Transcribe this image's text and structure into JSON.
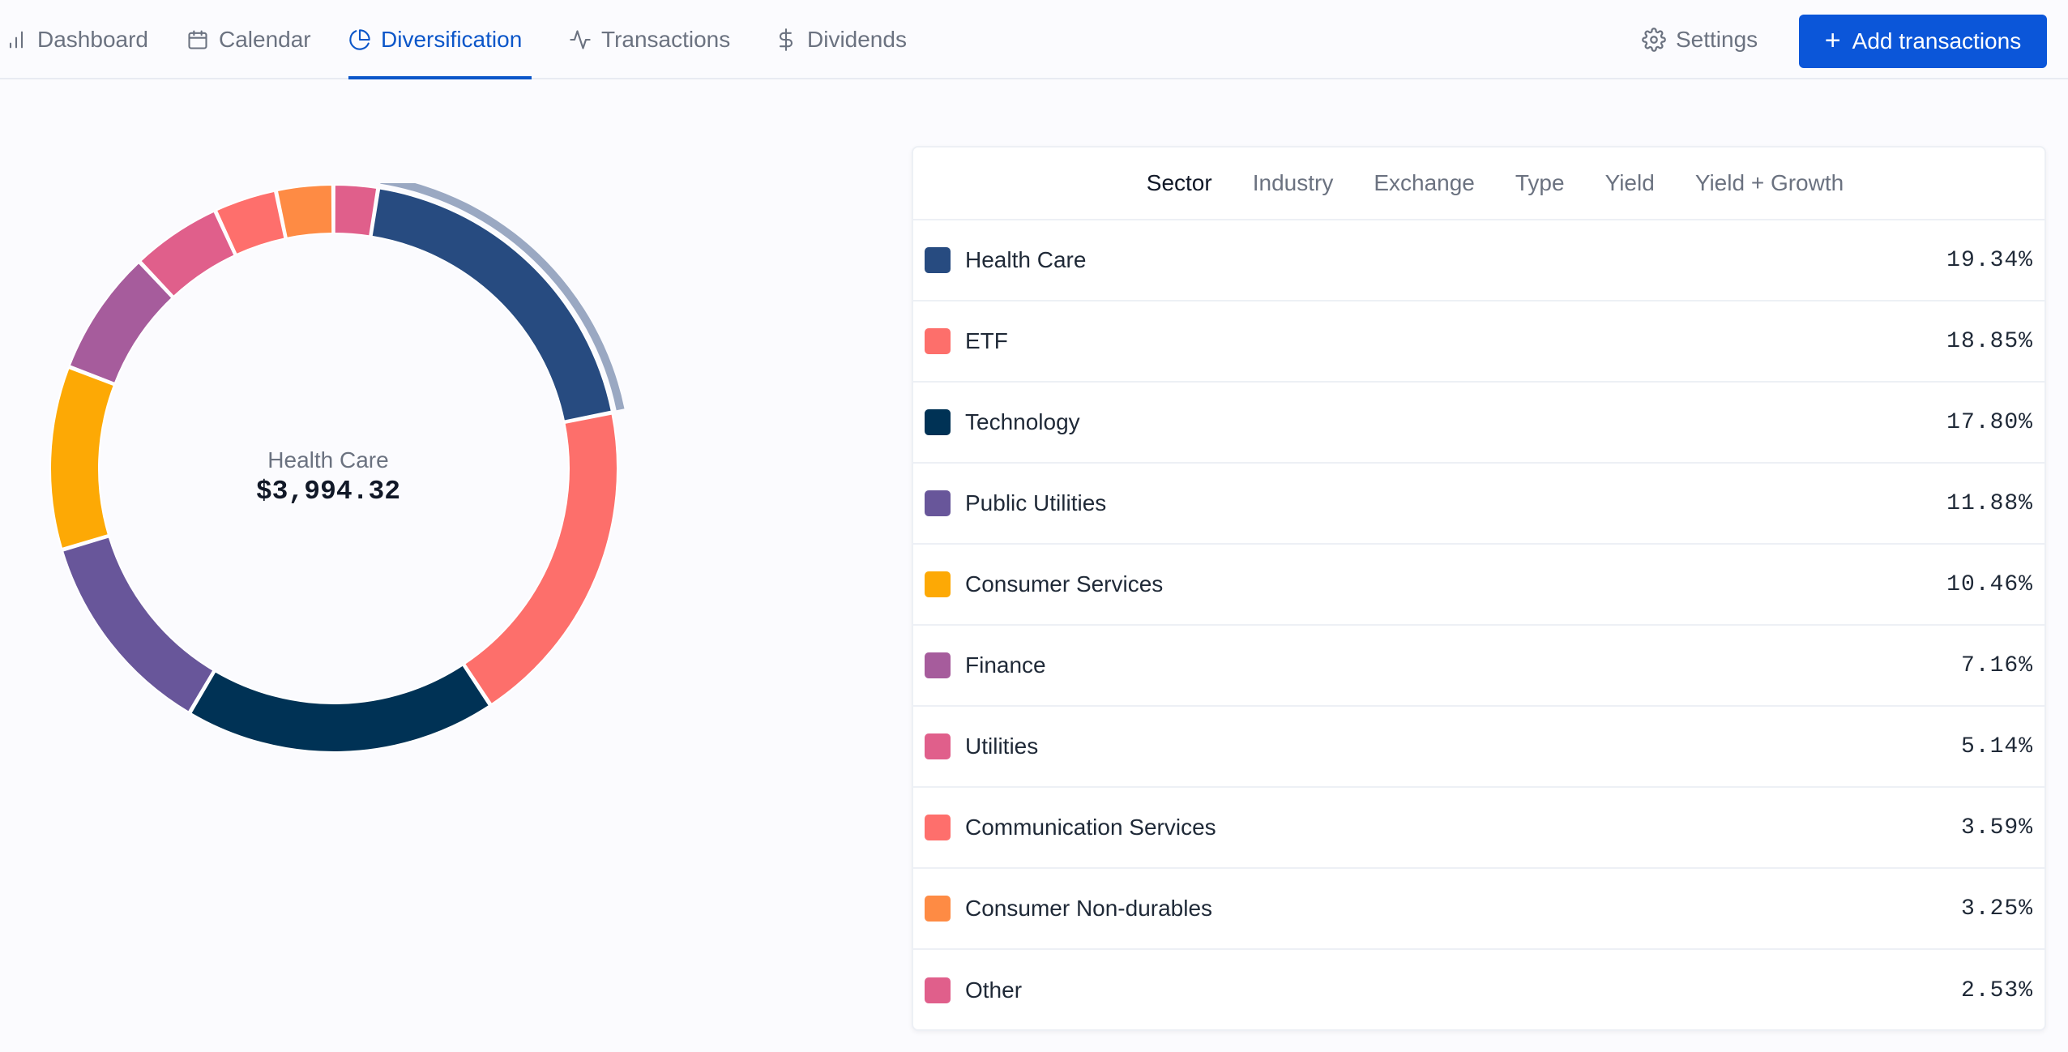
{
  "nav": {
    "tabs": [
      {
        "label": "Dashboard",
        "icon": "bar-chart-icon",
        "active": false
      },
      {
        "label": "Calendar",
        "icon": "calendar-icon",
        "active": false
      },
      {
        "label": "Diversification",
        "icon": "pie-chart-icon",
        "active": true
      },
      {
        "label": "Transactions",
        "icon": "activity-icon",
        "active": false
      },
      {
        "label": "Dividends",
        "icon": "dollar-icon",
        "active": false
      }
    ],
    "settings_label": "Settings",
    "add_button_label": "Add transactions"
  },
  "colors": {
    "accent": "#0b56c9",
    "highlight_ring": "#9aa8c2"
  },
  "donut": {
    "center_label": "Health Care",
    "center_value": "$3,994.32",
    "highlighted": "Health Care"
  },
  "breakdown": {
    "tabs": [
      "Sector",
      "Industry",
      "Exchange",
      "Type",
      "Yield",
      "Yield + Growth"
    ],
    "active_tab": "Sector"
  },
  "chart_data": {
    "type": "pie",
    "categories": [
      "Health Care",
      "ETF",
      "Technology",
      "Public Utilities",
      "Consumer Services",
      "Finance",
      "Utilities",
      "Communication Services",
      "Consumer Non-durables",
      "Other"
    ],
    "values": [
      19.34,
      18.85,
      17.8,
      11.88,
      10.46,
      7.16,
      5.14,
      3.59,
      3.25,
      2.53
    ],
    "labels": [
      "19.34%",
      "18.85%",
      "17.80%",
      "11.88%",
      "10.46%",
      "7.16%",
      "5.14%",
      "3.59%",
      "3.25%",
      "2.53%"
    ],
    "colors": [
      "#274b80",
      "#fd6f6b",
      "#003255",
      "#68569a",
      "#fda905",
      "#a65c9c",
      "#e05f8b",
      "#fe6f6c",
      "#fe8b44",
      "#e05f8b"
    ],
    "legend": "right"
  }
}
